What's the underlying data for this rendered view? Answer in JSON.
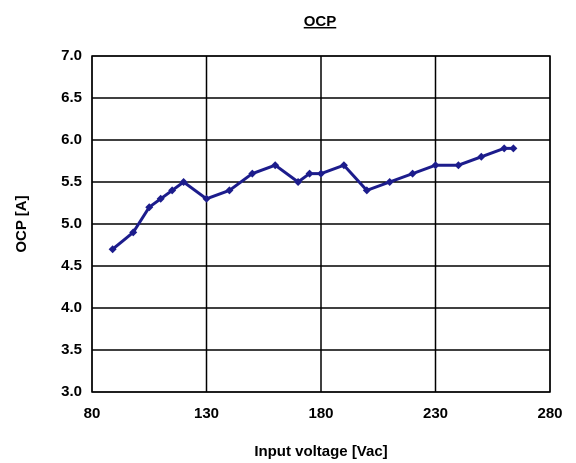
{
  "chart_data": {
    "type": "line",
    "title": "OCP",
    "x_label": "Input voltage [Vac]",
    "y_label": "OCP [A]",
    "x": [
      89,
      98,
      105,
      110,
      115,
      120,
      130,
      140,
      150,
      160,
      170,
      175,
      180,
      190,
      200,
      210,
      220,
      230,
      240,
      250,
      260,
      264
    ],
    "series": [
      {
        "name": "OCP",
        "color": "#1c1c8c",
        "values": [
          4.7,
          4.9,
          5.2,
          5.3,
          5.4,
          5.5,
          5.3,
          5.4,
          5.6,
          5.7,
          5.5,
          5.6,
          5.6,
          5.7,
          5.4,
          5.5,
          5.6,
          5.7,
          5.7,
          5.8,
          5.9,
          5.9
        ]
      }
    ],
    "xlim": [
      80,
      280
    ],
    "xticks": [
      80,
      130,
      180,
      230,
      280
    ],
    "ylim": [
      3,
      7
    ],
    "yticks": [
      {
        "value": 3,
        "label": "3.0"
      },
      {
        "value": 3.5,
        "label": "3.5"
      },
      {
        "value": 4,
        "label": "4.0"
      },
      {
        "value": 4.5,
        "label": "4.5"
      },
      {
        "value": 5,
        "label": "5.0"
      },
      {
        "value": 5.5,
        "label": "5.5"
      },
      {
        "value": 6,
        "label": "6.0"
      },
      {
        "value": 6.5,
        "label": "6.5"
      },
      {
        "value": 7,
        "label": "7.0"
      }
    ],
    "grid": true
  }
}
